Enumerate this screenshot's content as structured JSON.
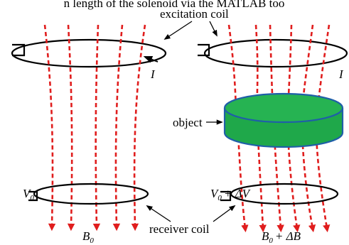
{
  "top_caption_fragment": "n length of the solenoid via the MATLAB too",
  "labels": {
    "excitation_coil": "excitation coil",
    "object": "object",
    "receiver_coil": "receiver coil",
    "current": "I",
    "current_right": "I",
    "voltage_left_main": "V",
    "voltage_left_sub": "0",
    "voltage_right_main": "V",
    "voltage_right_sub": "0",
    "voltage_right_delta": "+ ΔV",
    "field_left_main": "B",
    "field_left_sub": "0",
    "field_right_main": "B",
    "field_right_sub": "0",
    "field_right_delta": "+ ΔB"
  },
  "colors": {
    "field_line": "#e01d1d",
    "object_fill": "#1fa84a",
    "object_edge": "#1f5fa8",
    "coil": "#000000"
  }
}
